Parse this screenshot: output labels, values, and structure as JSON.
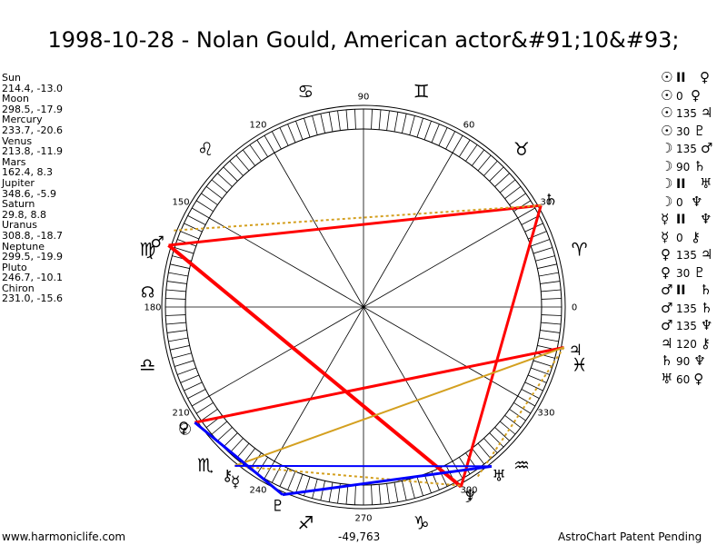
{
  "title": "1998-10-28 - Nolan Gould, American actor&#91;10&#93;",
  "planets": [
    {
      "name": "Sun",
      "coords": "214.4, -13.0"
    },
    {
      "name": "Moon",
      "coords": "298.5, -17.9"
    },
    {
      "name": "Mercury",
      "coords": "233.7, -20.6"
    },
    {
      "name": "Venus",
      "coords": "213.8, -11.9"
    },
    {
      "name": "Mars",
      "coords": "162.4, 8.3"
    },
    {
      "name": "Jupiter",
      "coords": "348.6, -5.9"
    },
    {
      "name": "Saturn",
      "coords": "29.8, 8.8"
    },
    {
      "name": "Uranus",
      "coords": "308.8, -18.7"
    },
    {
      "name": "Neptune",
      "coords": "299.5, -19.9"
    },
    {
      "name": "Pluto",
      "coords": "246.7, -10.1"
    },
    {
      "name": "Chiron",
      "coords": "231.0, -15.6"
    }
  ],
  "aspects": [
    {
      "p1": "☉",
      "type": "II",
      "p2": "♀"
    },
    {
      "p1": "☉",
      "type": "0",
      "p2": "♀"
    },
    {
      "p1": "☉",
      "type": "135",
      "p2": "♃"
    },
    {
      "p1": "☉",
      "type": "30",
      "p2": "♇"
    },
    {
      "p1": "☽",
      "type": "135",
      "p2": "♂"
    },
    {
      "p1": "☽",
      "type": "90",
      "p2": "♄"
    },
    {
      "p1": "☽",
      "type": "II",
      "p2": "♅"
    },
    {
      "p1": "☽",
      "type": "0",
      "p2": "♆"
    },
    {
      "p1": "☿",
      "type": "II",
      "p2": "♆"
    },
    {
      "p1": "☿",
      "type": "0",
      "p2": "⚷"
    },
    {
      "p1": "♀",
      "type": "135",
      "p2": "♃"
    },
    {
      "p1": "♀",
      "type": "30",
      "p2": "♇"
    },
    {
      "p1": "♂",
      "type": "II",
      "p2": "♄"
    },
    {
      "p1": "♂",
      "type": "135",
      "p2": "♄"
    },
    {
      "p1": "♂",
      "type": "135",
      "p2": "♆"
    },
    {
      "p1": "♃",
      "type": "120",
      "p2": "⚷"
    },
    {
      "p1": "♄",
      "type": "90",
      "p2": "♆"
    },
    {
      "p1": "♅",
      "type": "60",
      "p2": "♀"
    }
  ],
  "degree_labels": [
    {
      "deg": 0,
      "text": "0"
    },
    {
      "deg": 30,
      "text": "330"
    },
    {
      "deg": 60,
      "text": "300"
    },
    {
      "deg": 90,
      "text": "270"
    },
    {
      "deg": 120,
      "text": "240"
    },
    {
      "deg": 150,
      "text": "210"
    },
    {
      "deg": 180,
      "text": "180"
    },
    {
      "deg": 210,
      "text": "150"
    },
    {
      "deg": 240,
      "text": "120"
    },
    {
      "deg": 270,
      "text": "90"
    },
    {
      "deg": 300,
      "text": "60"
    },
    {
      "deg": 330,
      "text": "30"
    }
  ],
  "zodiac_signs": [
    {
      "glyph": "♈",
      "angle": -15
    },
    {
      "glyph": "♉",
      "angle": -45
    },
    {
      "glyph": "♊",
      "angle": -75
    },
    {
      "glyph": "♋",
      "angle": -105
    },
    {
      "glyph": "♌",
      "angle": -135
    },
    {
      "glyph": "♍",
      "angle": -165
    },
    {
      "glyph": "♎",
      "angle": 165
    },
    {
      "glyph": "♏",
      "angle": 135
    },
    {
      "glyph": "♐",
      "angle": 105
    },
    {
      "glyph": "♑",
      "angle": 75
    },
    {
      "glyph": "♒",
      "angle": 45
    },
    {
      "glyph": "♓",
      "angle": 15
    }
  ],
  "chart_glyphs": [
    {
      "glyph": "♄",
      "angle": -29.8
    },
    {
      "glyph": "♂",
      "angle": -162.4
    },
    {
      "glyph": "♃",
      "angle": 11.4
    },
    {
      "glyph": "☉",
      "angle": 145.6
    },
    {
      "glyph": "♀",
      "angle": 146.2
    },
    {
      "glyph": "⚷",
      "angle": 129
    },
    {
      "glyph": "♇",
      "angle": 113.3
    },
    {
      "glyph": "☿",
      "angle": 126.3
    },
    {
      "glyph": "♅",
      "angle": 51.2
    },
    {
      "glyph": "☽",
      "angle": 61.5
    },
    {
      "glyph": "♆",
      "angle": 60.5
    },
    {
      "glyph": "☊",
      "angle": -176
    }
  ],
  "colors": {
    "square_opposition": "#ff0000",
    "sesquiquadrate": "#d4a020",
    "sextile_trine": "#0000ff"
  },
  "footer": {
    "left": "www.harmoniclife.com",
    "middle": "-49,763",
    "right": "AstroChart Patent Pending"
  }
}
